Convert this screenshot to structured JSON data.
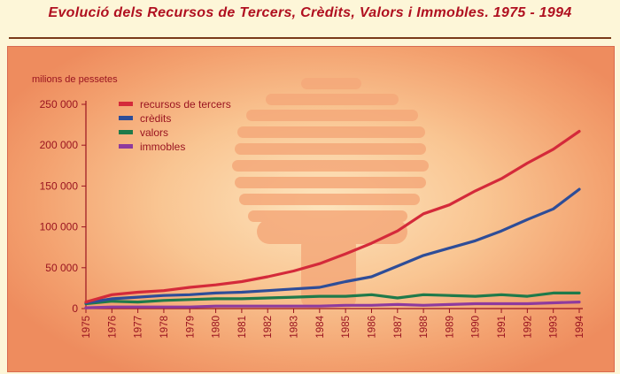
{
  "header": {
    "title": "Evolució dels Recursos de Tercers, Crèdits, Valors i Immobles. 1975 - 1994"
  },
  "chart_data": {
    "type": "line",
    "title": "Evolució dels Recursos de Tercers, Crèdits, Valors i Immobles. 1975 - 1994",
    "ylabel": "milions de pessetes",
    "xlabel": "",
    "ylim": [
      0,
      250000
    ],
    "yticks": [
      "0",
      "50 000",
      "100 000",
      "150 000",
      "200 000",
      "250 000"
    ],
    "yticks_values": [
      0,
      50000,
      100000,
      150000,
      200000,
      250000
    ],
    "x": [
      "1975",
      "1976",
      "1977",
      "1978",
      "1979",
      "1980",
      "1981",
      "1982",
      "1983",
      "1984",
      "1985",
      "1986",
      "1987",
      "1988",
      "1989",
      "1990",
      "1991",
      "1992",
      "1993",
      "1994"
    ],
    "legend_position": "top-left",
    "grid": false,
    "series": [
      {
        "name": "recursos de tercers",
        "color": "#d42a3a",
        "values": [
          8000,
          17000,
          20000,
          22000,
          26000,
          29000,
          33000,
          39000,
          46000,
          55000,
          67000,
          80000,
          95000,
          116000,
          127000,
          144000,
          159000,
          178000,
          195000,
          217000
        ]
      },
      {
        "name": "crèdits",
        "color": "#2e4d98",
        "values": [
          7000,
          12000,
          14000,
          16000,
          17000,
          19000,
          20000,
          22000,
          24000,
          26000,
          33000,
          39000,
          52000,
          65000,
          74000,
          83000,
          95000,
          109000,
          122000,
          146000
        ]
      },
      {
        "name": "valors",
        "color": "#1f7a4a",
        "values": [
          6000,
          9000,
          8000,
          10000,
          11000,
          12000,
          12000,
          13000,
          14000,
          15000,
          15000,
          17000,
          13000,
          17000,
          16000,
          15000,
          17000,
          15000,
          19000,
          19000
        ]
      },
      {
        "name": "immobles",
        "color": "#8e3a9e",
        "values": [
          1000,
          2000,
          2000,
          2000,
          2000,
          3000,
          3000,
          3000,
          3000,
          3000,
          4000,
          4000,
          5000,
          4000,
          5000,
          6000,
          6000,
          6000,
          7000,
          8000
        ]
      }
    ]
  }
}
